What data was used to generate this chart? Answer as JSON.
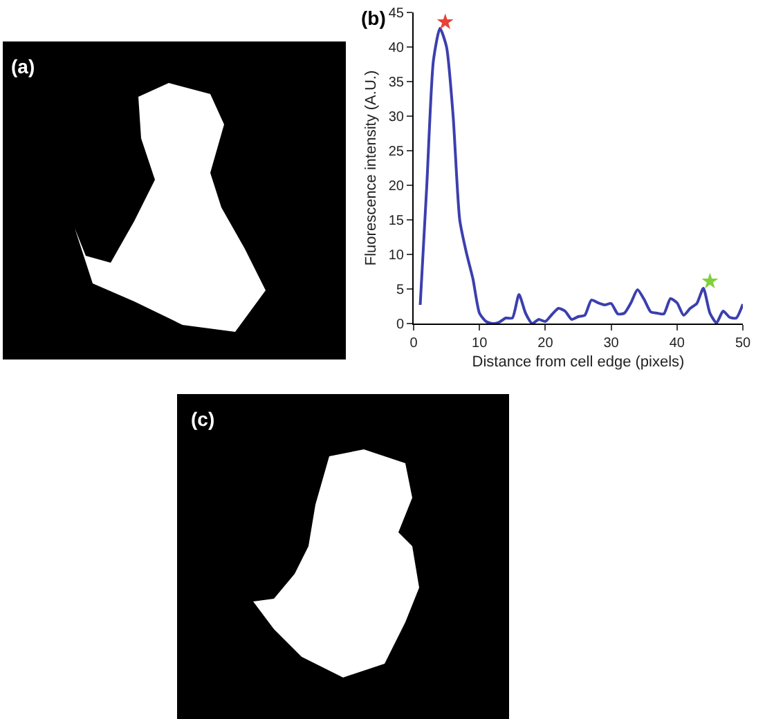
{
  "chart_data": {
    "type": "line",
    "xlabel": "Distance from cell edge (pixels)",
    "ylabel": "Fluorescence intensity (A.U.)",
    "annotations": [
      "(a)",
      "(b)",
      "(c)"
    ],
    "xlim": [
      0,
      50
    ],
    "xticks": [
      0,
      10,
      20,
      30,
      40,
      50
    ],
    "ylim": [
      0,
      45
    ],
    "yticks": [
      0,
      5,
      10,
      15,
      20,
      25,
      30,
      35,
      40,
      45
    ],
    "grid": false,
    "line_style": "solid",
    "marker": "none",
    "series": [
      {
        "color": "#3b3fae",
        "x": [
          1,
          2,
          3,
          4,
          5,
          6,
          7,
          8,
          9,
          10,
          11,
          12,
          13,
          14,
          15,
          16,
          17,
          18,
          19,
          20,
          21,
          22,
          23,
          24,
          25,
          26,
          27,
          28,
          29,
          30,
          31,
          32,
          33,
          34,
          35,
          36,
          37,
          38,
          39,
          40,
          41,
          42,
          43,
          44,
          45,
          46,
          47,
          48,
          49,
          50
        ],
        "values": [
          2.7,
          20,
          38,
          42.7,
          40,
          30,
          15,
          10.3,
          6.5,
          1.5,
          0.3,
          0,
          0.2,
          0.8,
          0.8,
          4.2,
          1.5,
          0,
          0.6,
          0.3,
          1.3,
          2.2,
          1.8,
          0.6,
          1,
          1.2,
          3.4,
          3,
          2.7,
          2.9,
          1.4,
          1.5,
          3,
          4.9,
          3.5,
          1.7,
          1.5,
          1.4,
          3.6,
          3,
          1.2,
          2.2,
          2.9,
          5.1,
          1.5,
          0.1,
          1.8,
          0.9,
          0.8,
          2.8
        ]
      },
      {
        "type": "scatter",
        "marker": "star",
        "color": "#e8413a",
        "x": [
          4.8
        ],
        "values": [
          43.6
        ]
      },
      {
        "type": "scatter",
        "marker": "star",
        "color": "#7fd13b",
        "x": [
          45
        ],
        "values": [
          6.1
        ]
      }
    ]
  }
}
